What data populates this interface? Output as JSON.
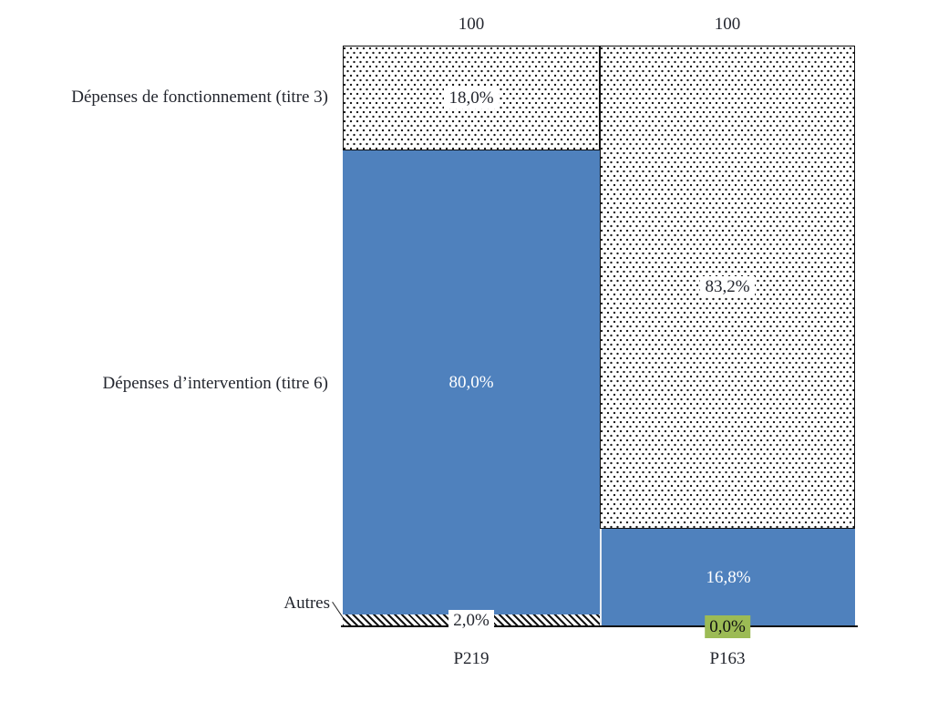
{
  "colors": {
    "blue": "#4f81bd",
    "green_highlight": "#9cbb55",
    "text": "#23262e",
    "dot_pattern": "#161616",
    "hatch_pattern": "#141414",
    "axis": "#111111"
  },
  "chart_data": {
    "type": "bar",
    "subtype": "stacked-percentage-columns",
    "title": "",
    "xlabel": "",
    "ylabel": "",
    "ylim": [
      0,
      100
    ],
    "grid": false,
    "legend_position": "left-category-labels",
    "categories": [
      "P219",
      "P163"
    ],
    "totals": [
      "100",
      "100"
    ],
    "series": [
      {
        "name": "Dépenses de fonctionnement (titre 3)",
        "pattern": "dots",
        "values": [
          18.0,
          83.2
        ],
        "labels": [
          "18,0%",
          "83,2%"
        ]
      },
      {
        "name": "Dépenses d’intervention (titre 6)",
        "pattern": "solid-blue",
        "values": [
          80.0,
          16.8
        ],
        "labels": [
          "80,0%",
          "16,8%"
        ]
      },
      {
        "name": "Autres",
        "pattern": "diagonal-hatch",
        "values": [
          2.0,
          0.0
        ],
        "labels": [
          "2,0%",
          "0,0%"
        ]
      }
    ]
  }
}
